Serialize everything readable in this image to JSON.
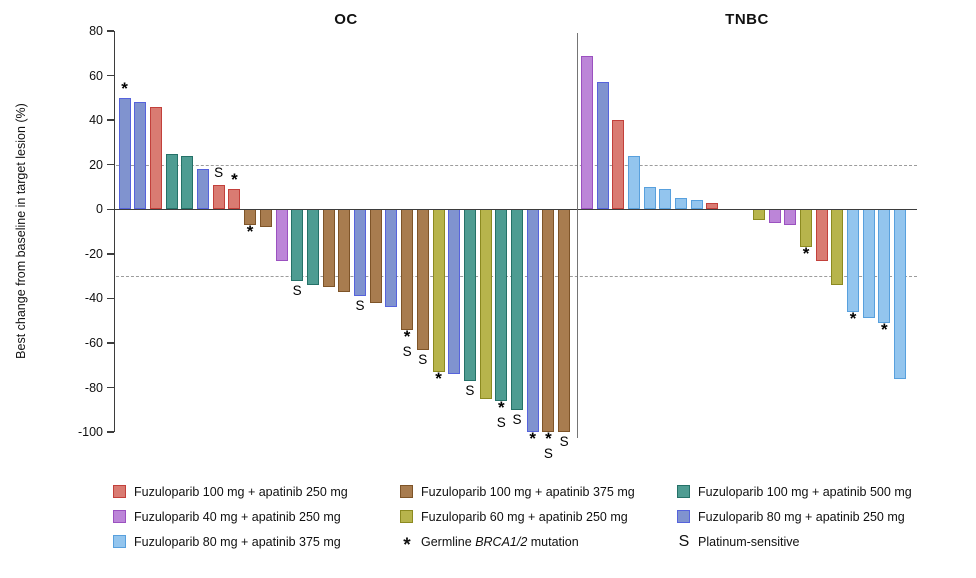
{
  "chart_data": {
    "type": "bar",
    "variant": "waterfall",
    "title": "",
    "ylabel": "Best change from baseline in target lesion (%)",
    "ylim": [
      -100,
      80
    ],
    "yticks": [
      80,
      60,
      40,
      20,
      0,
      -20,
      -40,
      -60,
      -80,
      -100
    ],
    "reference_lines_pct": [
      20,
      -30
    ],
    "grid": "off",
    "flag_symbols": {
      "brca": "*",
      "platinum": "S"
    },
    "flag_meanings": {
      "brca": "Germline BRCA1/2 mutation",
      "platinum": "Platinum-sensitive"
    },
    "palette": {
      "fz100_ap250": {
        "label": "Fuzuloparib 100 mg + apatinib 250 mg",
        "fill": "#D97B72",
        "border": "#C2403B"
      },
      "fz40_ap250": {
        "label": "Fuzuloparib 40 mg + apatinib 250 mg",
        "fill": "#BC85D8",
        "border": "#9B51C0"
      },
      "fz80_ap375": {
        "label": "Fuzuloparib 80 mg + apatinib 375 mg",
        "fill": "#93C5EE",
        "border": "#58A0DD"
      },
      "fz100_ap375": {
        "label": "Fuzuloparib 100 mg + apatinib 375 mg",
        "fill": "#A87C4F",
        "border": "#7E5428"
      },
      "fz60_ap250": {
        "label": "Fuzuloparib 60 mg + apatinib 250 mg",
        "fill": "#B7B44C",
        "border": "#8C8A20"
      },
      "fz100_ap500": {
        "label": "Fuzuloparib 100 mg + apatinib 500 mg",
        "fill": "#4E9C92",
        "border": "#257168"
      },
      "fz80_ap250": {
        "label": "Fuzuloparib 80 mg + apatinib 250 mg",
        "fill": "#8093CF",
        "border": "#5663DC"
      }
    },
    "panels": [
      {
        "title": "OC",
        "bars": [
          {
            "value": 50,
            "group": "fz80_ap250",
            "flags": [
              "brca"
            ]
          },
          {
            "value": 48,
            "group": "fz80_ap250",
            "flags": []
          },
          {
            "value": 46,
            "group": "fz100_ap250",
            "flags": []
          },
          {
            "value": 25,
            "group": "fz100_ap500",
            "flags": []
          },
          {
            "value": 24,
            "group": "fz100_ap500",
            "flags": []
          },
          {
            "value": 18,
            "group": "fz80_ap250",
            "flags": []
          },
          {
            "value": 11,
            "group": "fz100_ap250",
            "flags": [
              "platinum"
            ]
          },
          {
            "value": 9,
            "group": "fz100_ap250",
            "flags": [
              "brca"
            ]
          },
          {
            "value": -7,
            "group": "fz100_ap375",
            "flags": [
              "brca"
            ]
          },
          {
            "value": -8,
            "group": "fz100_ap375",
            "flags": []
          },
          {
            "value": -23,
            "group": "fz40_ap250",
            "flags": []
          },
          {
            "value": -32,
            "group": "fz100_ap500",
            "flags": [
              "platinum"
            ]
          },
          {
            "value": -34,
            "group": "fz100_ap500",
            "flags": []
          },
          {
            "value": -35,
            "group": "fz100_ap375",
            "flags": []
          },
          {
            "value": -37,
            "group": "fz100_ap375",
            "flags": []
          },
          {
            "value": -39,
            "group": "fz80_ap250",
            "flags": [
              "platinum"
            ]
          },
          {
            "value": -42,
            "group": "fz100_ap375",
            "flags": []
          },
          {
            "value": -44,
            "group": "fz80_ap250",
            "flags": []
          },
          {
            "value": -54,
            "group": "fz100_ap375",
            "flags": [
              "brca",
              "platinum"
            ]
          },
          {
            "value": -63,
            "group": "fz100_ap375",
            "flags": [
              "platinum"
            ]
          },
          {
            "value": -73,
            "group": "fz60_ap250",
            "flags": [
              "brca"
            ]
          },
          {
            "value": -74,
            "group": "fz80_ap250",
            "flags": []
          },
          {
            "value": -77,
            "group": "fz100_ap500",
            "flags": [
              "platinum"
            ]
          },
          {
            "value": -85,
            "group": "fz60_ap250",
            "flags": []
          },
          {
            "value": -86,
            "group": "fz100_ap500",
            "flags": [
              "brca",
              "platinum"
            ]
          },
          {
            "value": -90,
            "group": "fz100_ap500",
            "flags": [
              "platinum"
            ]
          },
          {
            "value": -100,
            "group": "fz80_ap250",
            "flags": [
              "brca"
            ]
          },
          {
            "value": -100,
            "group": "fz100_ap375",
            "flags": [
              "brca",
              "platinum"
            ]
          },
          {
            "value": -100,
            "group": "fz100_ap375",
            "flags": [
              "platinum"
            ]
          }
        ]
      },
      {
        "title": "TNBC",
        "bars": [
          {
            "value": 69,
            "group": "fz40_ap250",
            "flags": []
          },
          {
            "value": 57,
            "group": "fz80_ap250",
            "flags": []
          },
          {
            "value": 40,
            "group": "fz100_ap250",
            "flags": []
          },
          {
            "value": 24,
            "group": "fz80_ap375",
            "flags": []
          },
          {
            "value": 10,
            "group": "fz80_ap375",
            "flags": []
          },
          {
            "value": 9,
            "group": "fz80_ap375",
            "flags": []
          },
          {
            "value": 5,
            "group": "fz80_ap375",
            "flags": []
          },
          {
            "value": 4,
            "group": "fz80_ap375",
            "flags": []
          },
          {
            "value": 3,
            "group": "fz100_ap250",
            "flags": []
          },
          {
            "value": 0,
            "group": null,
            "flags": []
          },
          {
            "value": 0,
            "group": null,
            "flags": []
          },
          {
            "value": -5,
            "group": "fz60_ap250",
            "flags": []
          },
          {
            "value": -6,
            "group": "fz40_ap250",
            "flags": []
          },
          {
            "value": -7,
            "group": "fz40_ap250",
            "flags": []
          },
          {
            "value": -17,
            "group": "fz60_ap250",
            "flags": [
              "brca"
            ]
          },
          {
            "value": -23,
            "group": "fz100_ap250",
            "flags": []
          },
          {
            "value": -34,
            "group": "fz60_ap250",
            "flags": []
          },
          {
            "value": -46,
            "group": "fz80_ap375",
            "flags": [
              "brca"
            ]
          },
          {
            "value": -49,
            "group": "fz80_ap375",
            "flags": []
          },
          {
            "value": -51,
            "group": "fz80_ap375",
            "flags": [
              "brca"
            ]
          },
          {
            "value": -76,
            "group": "fz80_ap375",
            "flags": []
          }
        ]
      }
    ]
  },
  "legend": {
    "columns": [
      {
        "items": [
          {
            "group": "fz100_ap250"
          },
          {
            "group": "fz40_ap250"
          },
          {
            "group": "fz80_ap375"
          }
        ]
      },
      {
        "items": [
          {
            "group": "fz100_ap375"
          },
          {
            "group": "fz60_ap250"
          },
          {
            "symbol": "*",
            "symbol_name": "brca-asterisk",
            "parts": [
              {
                "text": "Germline "
              },
              {
                "text": "BRCA1/2",
                "italic": true
              },
              {
                "text": " mutation"
              }
            ]
          }
        ]
      },
      {
        "items": [
          {
            "group": "fz100_ap500"
          },
          {
            "group": "fz80_ap250"
          },
          {
            "symbol": "S",
            "symbol_name": "platinum-s",
            "parts": [
              {
                "text": "Platinum-sensitive"
              }
            ]
          }
        ]
      }
    ]
  }
}
